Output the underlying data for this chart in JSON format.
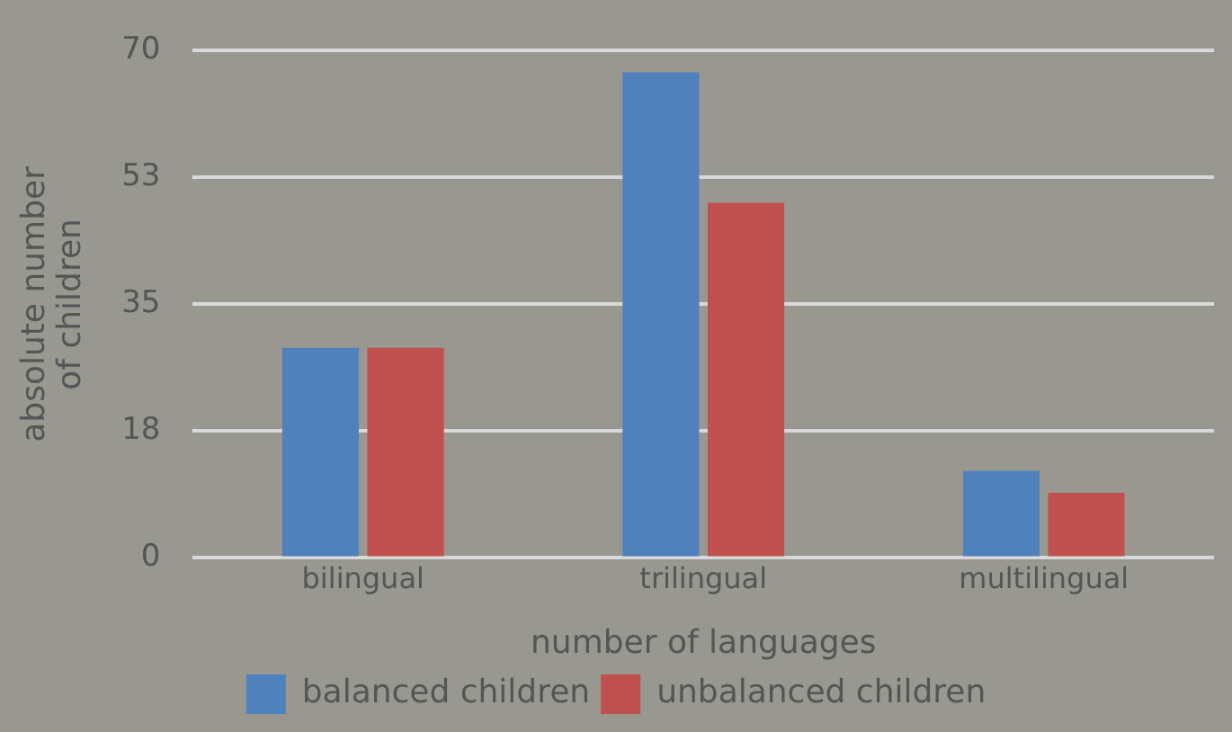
{
  "chart_data": {
    "type": "bar",
    "xlabel": "number of languages",
    "ylabel": "absolute number of children",
    "categories": [
      "bilingual",
      "trilingual",
      "multilingual"
    ],
    "series": [
      {
        "name": "balanced children",
        "color": "#4f81bd",
        "values": [
          29,
          67,
          12
        ]
      },
      {
        "name": "unbalanced children",
        "color": "#c0504d",
        "values": [
          29,
          49,
          9
        ]
      }
    ],
    "ylim": [
      0,
      70
    ],
    "yticks": [
      0,
      {
        "value": 17.5,
        "label": "18"
      },
      35,
      {
        "value": 52.5,
        "label": "53"
      },
      70
    ],
    "grid": "y",
    "legend": "bottom"
  }
}
